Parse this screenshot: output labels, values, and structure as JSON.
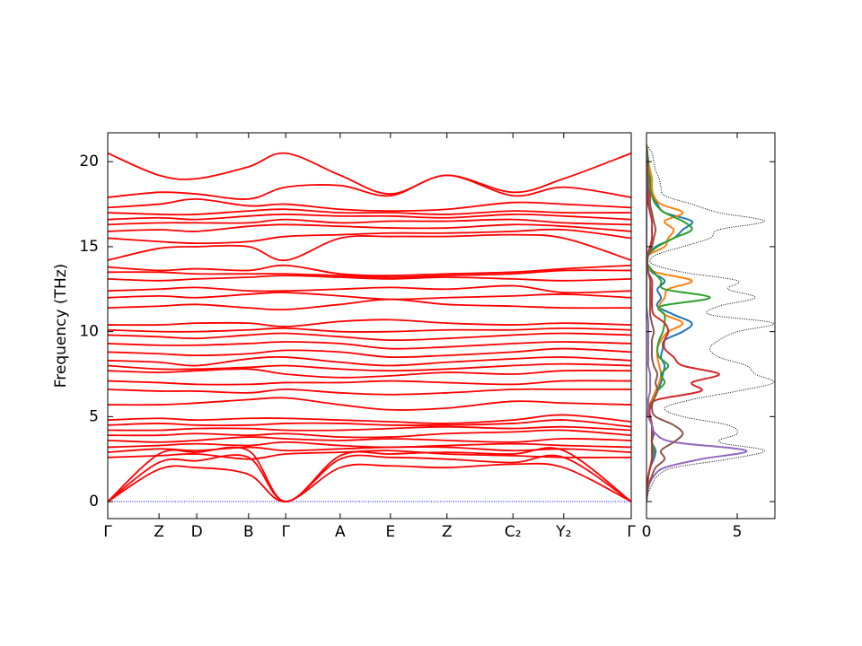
{
  "chart_data": [
    {
      "type": "line",
      "ylabel": "Frequency (THz)",
      "color": "#ff0000",
      "x": [
        0,
        0.098,
        0.17,
        0.269,
        0.34,
        0.444,
        0.54,
        0.648,
        0.774,
        0.871,
        1.0
      ],
      "xlim": [
        0,
        1.0
      ],
      "xticks": [
        {
          "value": 0,
          "label": "Γ"
        },
        {
          "value": 0.098,
          "label": "Z"
        },
        {
          "value": 0.17,
          "label": "D"
        },
        {
          "value": 0.269,
          "label": "B"
        },
        {
          "value": 0.34,
          "label": "Γ"
        },
        {
          "value": 0.444,
          "label": "A"
        },
        {
          "value": 0.54,
          "label": "E"
        },
        {
          "value": 0.648,
          "label": "Z"
        },
        {
          "value": 0.774,
          "label": "C₂"
        },
        {
          "value": 0.871,
          "label": "Y₂"
        },
        {
          "value": 1.0,
          "label": "Γ"
        }
      ],
      "ylim": [
        -1.0,
        21.7
      ],
      "yticks": [
        0,
        5,
        10,
        15,
        20
      ],
      "series": [
        {
          "color": "#0000ff",
          "linestyle": "dotted",
          "values": [
            0,
            0,
            0,
            0,
            0,
            0,
            0,
            0,
            0,
            0,
            0
          ]
        },
        {
          "values": [
            0,
            1.9,
            2.0,
            1.6,
            0,
            2.0,
            2.1,
            2.0,
            2.2,
            2.0,
            0
          ]
        },
        {
          "values": [
            0,
            2.3,
            2.4,
            2.6,
            0,
            2.5,
            2.6,
            2.5,
            2.3,
            2.6,
            0
          ]
        },
        {
          "values": [
            0,
            2.8,
            2.9,
            3.0,
            0,
            2.7,
            2.8,
            2.9,
            2.8,
            3.0,
            0
          ]
        },
        {
          "values": [
            2.6,
            2.7,
            2.8,
            2.5,
            2.8,
            2.9,
            3.0,
            2.8,
            2.7,
            2.6,
            2.6
          ]
        },
        {
          "values": [
            2.9,
            3.1,
            3.0,
            3.2,
            3.0,
            3.1,
            3.2,
            3.2,
            3.0,
            3.1,
            2.9
          ]
        },
        {
          "values": [
            3.2,
            3.3,
            3.4,
            3.3,
            3.5,
            3.3,
            3.2,
            3.3,
            3.4,
            3.3,
            3.2
          ]
        },
        {
          "values": [
            3.6,
            3.5,
            3.6,
            3.8,
            3.7,
            3.6,
            3.7,
            3.6,
            3.5,
            3.7,
            3.6
          ]
        },
        {
          "values": [
            3.9,
            3.9,
            4.0,
            3.9,
            4.0,
            3.8,
            3.8,
            4.0,
            4.1,
            4.2,
            3.9
          ]
        },
        {
          "values": [
            4.2,
            4.2,
            4.3,
            4.3,
            4.2,
            4.2,
            4.3,
            4.4,
            4.3,
            4.4,
            4.2
          ]
        },
        {
          "values": [
            4.5,
            4.6,
            4.5,
            4.5,
            4.6,
            4.6,
            4.5,
            4.5,
            4.6,
            4.8,
            4.4
          ]
        },
        {
          "values": [
            4.8,
            4.9,
            4.8,
            4.9,
            4.9,
            4.8,
            4.7,
            4.6,
            4.8,
            5.1,
            4.7
          ]
        },
        {
          "values": [
            5.7,
            5.7,
            5.8,
            6.0,
            6.1,
            5.7,
            5.4,
            5.5,
            5.9,
            5.8,
            5.7
          ]
        },
        {
          "values": [
            6.6,
            6.5,
            6.5,
            6.4,
            6.6,
            6.4,
            6.3,
            6.4,
            6.6,
            6.6,
            6.6
          ]
        },
        {
          "values": [
            7.1,
            7.0,
            6.9,
            6.9,
            7.0,
            7.0,
            7.1,
            7.0,
            6.9,
            7.1,
            7.1
          ]
        },
        {
          "values": [
            7.7,
            7.6,
            7.7,
            7.8,
            7.5,
            7.3,
            7.4,
            7.6,
            7.5,
            7.7,
            7.7
          ]
        },
        {
          "values": [
            8.0,
            7.8,
            7.8,
            7.9,
            8.0,
            7.8,
            7.7,
            7.8,
            8.0,
            8.1,
            8.0
          ]
        },
        {
          "values": [
            8.3,
            8.2,
            8.0,
            8.4,
            8.5,
            8.2,
            8.0,
            8.2,
            8.4,
            8.5,
            8.3
          ]
        },
        {
          "values": [
            8.8,
            8.7,
            8.6,
            8.7,
            8.9,
            8.8,
            8.5,
            8.6,
            8.8,
            9.0,
            8.8
          ]
        },
        {
          "values": [
            9.3,
            9.2,
            9.2,
            9.3,
            9.4,
            9.3,
            9.0,
            9.1,
            9.3,
            9.4,
            9.3
          ]
        },
        {
          "values": [
            9.8,
            9.7,
            9.6,
            9.8,
            9.9,
            9.7,
            9.5,
            9.6,
            9.8,
            9.9,
            9.8
          ]
        },
        {
          "values": [
            10.1,
            10.0,
            10.0,
            10.1,
            10.2,
            10.0,
            10.0,
            10.1,
            10.1,
            10.2,
            10.1
          ]
        },
        {
          "values": [
            10.4,
            10.4,
            10.5,
            10.5,
            10.3,
            10.6,
            10.7,
            10.5,
            10.4,
            10.5,
            10.4
          ]
        },
        {
          "values": [
            11.4,
            11.5,
            11.6,
            11.4,
            11.3,
            11.6,
            11.9,
            11.6,
            11.5,
            11.4,
            11.4
          ]
        },
        {
          "values": [
            12.0,
            12.1,
            12.0,
            12.2,
            12.3,
            12.1,
            11.9,
            12.0,
            12.1,
            12.2,
            12.0
          ]
        },
        {
          "values": [
            12.4,
            12.5,
            12.6,
            12.4,
            12.4,
            12.5,
            12.6,
            12.5,
            12.7,
            12.3,
            12.4
          ]
        },
        {
          "values": [
            13.1,
            13.0,
            13.1,
            13.2,
            13.3,
            13.2,
            13.1,
            13.2,
            13.1,
            13.0,
            13.1
          ]
        },
        {
          "values": [
            13.5,
            13.5,
            13.4,
            13.4,
            13.4,
            13.3,
            13.2,
            13.3,
            13.4,
            13.6,
            13.6
          ]
        },
        {
          "values": [
            13.8,
            13.6,
            13.7,
            13.6,
            13.9,
            13.4,
            13.3,
            13.4,
            13.5,
            13.7,
            13.9
          ]
        },
        {
          "values": [
            14.2,
            14.9,
            15.0,
            15.0,
            14.2,
            15.5,
            15.6,
            15.6,
            15.7,
            15.5,
            14.2
          ]
        },
        {
          "values": [
            15.5,
            15.3,
            15.2,
            15.3,
            15.6,
            15.7,
            15.8,
            15.8,
            15.9,
            16.0,
            15.5
          ]
        },
        {
          "values": [
            15.9,
            16.0,
            15.9,
            16.2,
            16.3,
            16.2,
            16.1,
            16.1,
            16.3,
            16.2,
            15.9
          ]
        },
        {
          "values": [
            16.3,
            16.4,
            16.4,
            16.4,
            16.6,
            16.4,
            16.5,
            16.5,
            16.6,
            16.4,
            16.3
          ]
        },
        {
          "values": [
            16.6,
            16.7,
            16.6,
            16.8,
            16.9,
            16.8,
            16.8,
            16.7,
            16.9,
            16.8,
            16.6
          ]
        },
        {
          "values": [
            17.0,
            16.9,
            16.9,
            17.1,
            17.2,
            17.0,
            17.0,
            16.9,
            17.1,
            17.0,
            17.0
          ]
        },
        {
          "values": [
            17.3,
            17.5,
            17.8,
            17.4,
            17.5,
            17.2,
            17.1,
            17.2,
            17.6,
            17.5,
            17.3
          ]
        },
        {
          "values": [
            17.9,
            18.2,
            18.1,
            17.8,
            18.5,
            18.6,
            18.0,
            19.2,
            18.0,
            18.5,
            17.9
          ]
        },
        {
          "values": [
            20.5,
            19.2,
            19.0,
            19.7,
            20.5,
            19.2,
            18.1,
            19.2,
            18.2,
            19.0,
            20.5
          ]
        }
      ]
    },
    {
      "type": "dos",
      "y": [
        0,
        0.5,
        1,
        1.5,
        2,
        2.5,
        3,
        3.5,
        4,
        4.5,
        5,
        5.5,
        6,
        6.5,
        7,
        7.5,
        8,
        8.5,
        9,
        9.5,
        10,
        10.5,
        11,
        11.5,
        12,
        12.5,
        13,
        13.5,
        14,
        14.5,
        15,
        15.5,
        16,
        16.5,
        17,
        17.5,
        18,
        18.5,
        19,
        19.5,
        20,
        20.5,
        21
      ],
      "xlim": [
        0,
        7.08
      ],
      "xticks": [
        0,
        5
      ],
      "ylim": [
        -1.0,
        21.7
      ],
      "yticks": [
        0,
        5,
        10,
        15,
        20
      ],
      "series": [
        {
          "color": "#000000",
          "linestyle": "dotted",
          "values": [
            0,
            0.1,
            0.3,
            0.6,
            1.5,
            4.5,
            6.5,
            4.0,
            5.0,
            4.5,
            2.0,
            1.0,
            2.5,
            5.0,
            7.0,
            6.0,
            5.5,
            4.0,
            3.5,
            4.0,
            5.0,
            7.0,
            3.5,
            4.0,
            6.0,
            4.5,
            5.0,
            2.0,
            0.3,
            0.5,
            2.0,
            3.5,
            4.0,
            6.5,
            4.0,
            2.5,
            1.0,
            0.8,
            0.7,
            0.5,
            0.4,
            0.3,
            0
          ]
        },
        {
          "color": "#1f77b4",
          "values": [
            0,
            0,
            0.05,
            0.1,
            0.2,
            0.4,
            0.5,
            0.3,
            0.4,
            0.3,
            0.2,
            0.1,
            0.3,
            0.6,
            0.8,
            0.9,
            1.0,
            0.8,
            0.9,
            1.0,
            2.0,
            2.5,
            1.5,
            0.6,
            0.8,
            0.6,
            1.0,
            0.3,
            0.05,
            0.1,
            0.5,
            1.5,
            2.0,
            2.5,
            1.0,
            0.6,
            0.3,
            0.2,
            0.2,
            0.1,
            0.1,
            0.05,
            0
          ]
        },
        {
          "color": "#ff7f0e",
          "values": [
            0,
            0,
            0.05,
            0.1,
            0.2,
            0.3,
            0.4,
            0.3,
            0.3,
            0.3,
            0.2,
            0.1,
            0.3,
            0.5,
            0.7,
            0.8,
            0.7,
            0.6,
            0.6,
            0.8,
            1.2,
            2.0,
            1.0,
            0.7,
            1.0,
            1.2,
            2.5,
            0.5,
            0.05,
            0.1,
            1.0,
            1.2,
            1.5,
            1.0,
            2.0,
            0.8,
            0.4,
            0.3,
            0.3,
            0.2,
            0.1,
            0.05,
            0
          ]
        },
        {
          "color": "#2ca02c",
          "values": [
            0,
            0,
            0.05,
            0.1,
            0.2,
            0.3,
            0.4,
            0.3,
            0.3,
            0.3,
            0.2,
            0.1,
            0.4,
            0.6,
            1.0,
            0.8,
            1.2,
            0.7,
            0.6,
            0.7,
            0.9,
            1.0,
            1.0,
            0.8,
            3.5,
            1.0,
            0.8,
            0.4,
            0.05,
            0.1,
            0.6,
            1.5,
            2.5,
            2.0,
            1.0,
            0.5,
            0.3,
            0.2,
            0.2,
            0.1,
            0.1,
            0.05,
            0
          ]
        },
        {
          "color": "#d62728",
          "values": [
            0,
            0,
            0.05,
            0.1,
            0.2,
            0.3,
            0.3,
            0.3,
            0.3,
            0.3,
            0.2,
            0.2,
            0.6,
            3.0,
            2.5,
            4.0,
            2.0,
            1.5,
            1.0,
            1.0,
            1.2,
            1.0,
            0.4,
            0.3,
            0.3,
            0.3,
            0.3,
            0.1,
            0,
            0.05,
            0.2,
            0.3,
            0.3,
            0.3,
            0.2,
            0.1,
            0.1,
            0.05,
            0.05,
            0,
            0,
            0,
            0
          ]
        },
        {
          "color": "#9467bd",
          "values": [
            0,
            0.05,
            0.15,
            0.4,
            1.0,
            3.0,
            5.5,
            1.5,
            0.5,
            0.3,
            0.1,
            0.1,
            0.1,
            0.2,
            0.2,
            0.2,
            0.1,
            0.1,
            0.1,
            0.1,
            0.1,
            0.1,
            0.05,
            0,
            0,
            0,
            0,
            0,
            0,
            0,
            0,
            0,
            0,
            0,
            0,
            0,
            0,
            0,
            0,
            0,
            0,
            0,
            0
          ]
        },
        {
          "color": "#8c564b",
          "values": [
            0,
            0.05,
            0.1,
            0.3,
            0.5,
            1.0,
            0.8,
            1.5,
            2.0,
            1.5,
            0.5,
            0.3,
            0.4,
            0.6,
            0.5,
            0.6,
            0.4,
            0.3,
            0.3,
            0.3,
            0.4,
            0.3,
            0.2,
            0.2,
            0.2,
            0.2,
            0.2,
            0.1,
            0.05,
            0.1,
            0.3,
            0.4,
            0.5,
            0.4,
            0.3,
            0.2,
            0.2,
            0.1,
            0.1,
            0.05,
            0.05,
            0,
            0
          ]
        }
      ]
    }
  ]
}
